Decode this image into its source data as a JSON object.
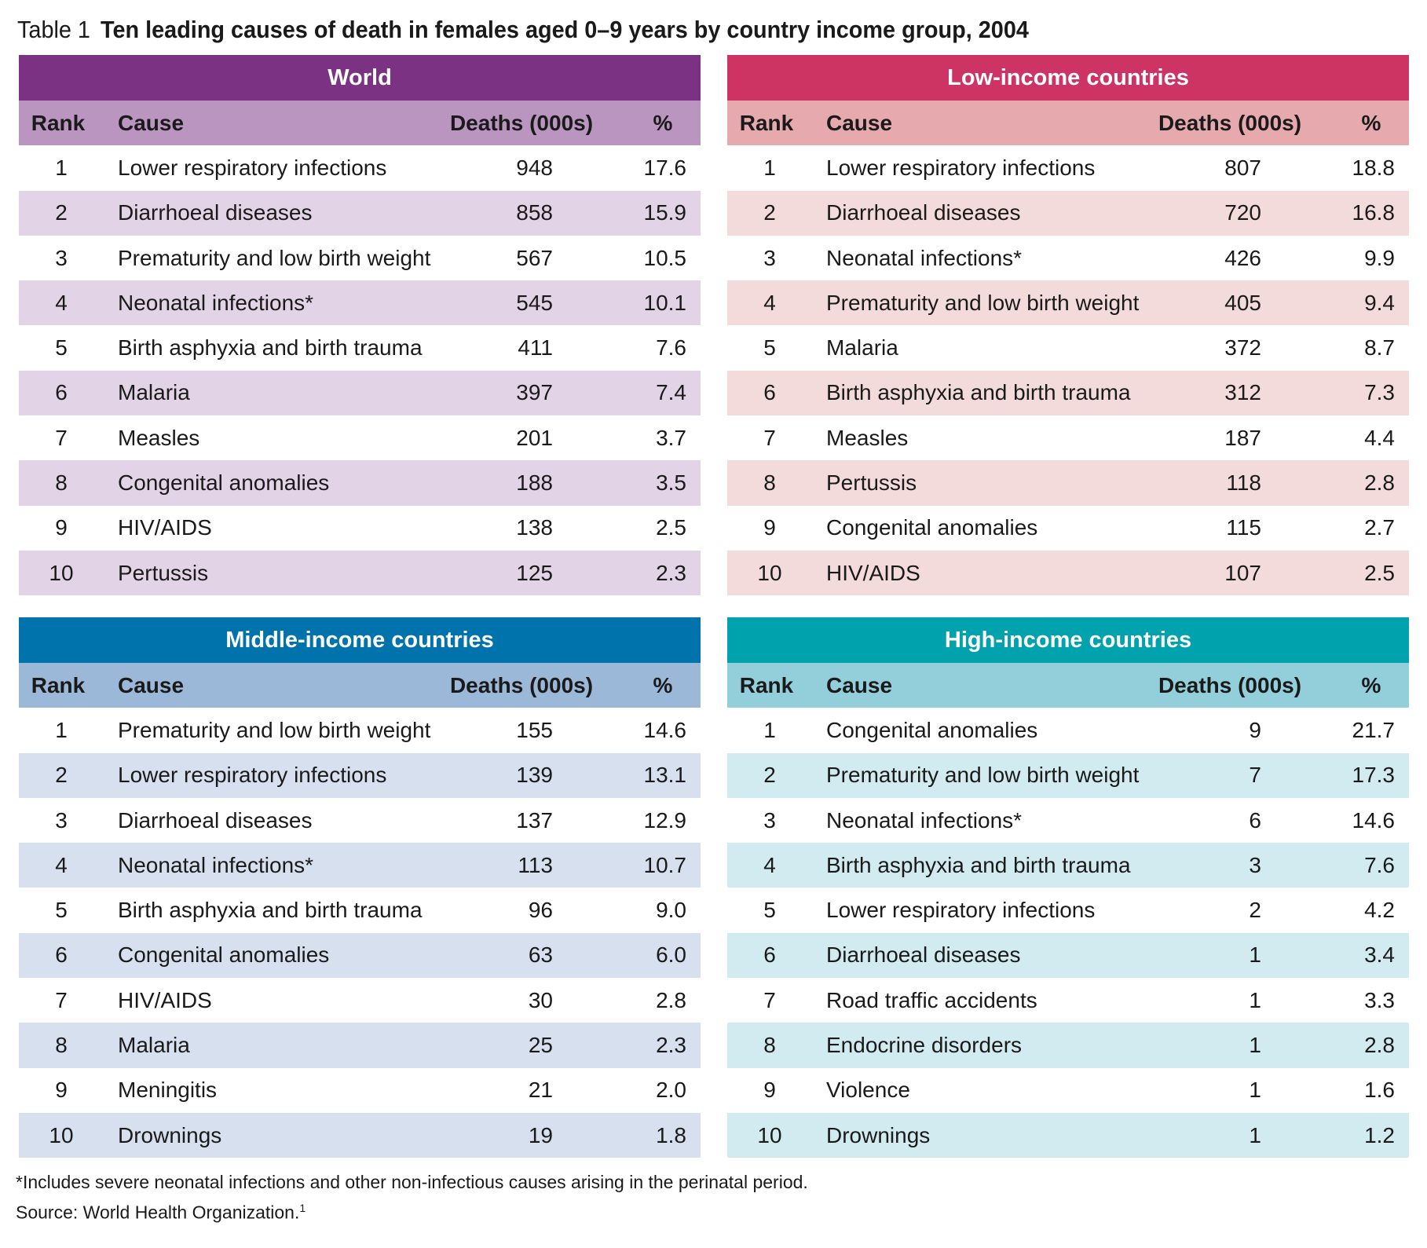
{
  "title": {
    "label": "Table 1",
    "text": "Ten leading causes of death in females aged 0–9 years by country income group, 2004"
  },
  "columns": {
    "rank": "Rank",
    "cause": "Cause",
    "deaths": "Deaths (000s)",
    "pct": "%"
  },
  "panels": [
    {
      "key": "world",
      "heading": "World",
      "colors": {
        "header": "#7b3282",
        "subheader": "#b995c0",
        "stripe": "#e2d3e6"
      },
      "rows": [
        {
          "rank": "1",
          "cause": "Lower respiratory infections",
          "deaths": "948",
          "pct": "17.6"
        },
        {
          "rank": "2",
          "cause": "Diarrhoeal diseases",
          "deaths": "858",
          "pct": "15.9"
        },
        {
          "rank": "3",
          "cause": "Prematurity and low birth weight",
          "deaths": "567",
          "pct": "10.5"
        },
        {
          "rank": "4",
          "cause": "Neonatal infections*",
          "deaths": "545",
          "pct": "10.1"
        },
        {
          "rank": "5",
          "cause": "Birth asphyxia and birth trauma",
          "deaths": "411",
          "pct": "7.6"
        },
        {
          "rank": "6",
          "cause": "Malaria",
          "deaths": "397",
          "pct": "7.4"
        },
        {
          "rank": "7",
          "cause": "Measles",
          "deaths": "201",
          "pct": "3.7"
        },
        {
          "rank": "8",
          "cause": "Congenital anomalies",
          "deaths": "188",
          "pct": "3.5"
        },
        {
          "rank": "9",
          "cause": "HIV/AIDS",
          "deaths": "138",
          "pct": "2.5"
        },
        {
          "rank": "10",
          "cause": "Pertussis",
          "deaths": "125",
          "pct": "2.3"
        }
      ]
    },
    {
      "key": "low",
      "heading": "Low-income countries",
      "colors": {
        "header": "#cd3463",
        "subheader": "#e6a9ae",
        "stripe": "#f3dbdc"
      },
      "rows": [
        {
          "rank": "1",
          "cause": "Lower respiratory infections",
          "deaths": "807",
          "pct": "18.8"
        },
        {
          "rank": "2",
          "cause": "Diarrhoeal diseases",
          "deaths": "720",
          "pct": "16.8"
        },
        {
          "rank": "3",
          "cause": "Neonatal infections*",
          "deaths": "426",
          "pct": "9.9"
        },
        {
          "rank": "4",
          "cause": "Prematurity and low birth weight",
          "deaths": "405",
          "pct": "9.4"
        },
        {
          "rank": "5",
          "cause": "Malaria",
          "deaths": "372",
          "pct": "8.7"
        },
        {
          "rank": "6",
          "cause": "Birth asphyxia and birth trauma",
          "deaths": "312",
          "pct": "7.3"
        },
        {
          "rank": "7",
          "cause": "Measles",
          "deaths": "187",
          "pct": "4.4"
        },
        {
          "rank": "8",
          "cause": "Pertussis",
          "deaths": "118",
          "pct": "2.8"
        },
        {
          "rank": "9",
          "cause": "Congenital anomalies",
          "deaths": "115",
          "pct": "2.7"
        },
        {
          "rank": "10",
          "cause": "HIV/AIDS",
          "deaths": "107",
          "pct": "2.5"
        }
      ]
    },
    {
      "key": "mid",
      "heading": "Middle-income countries",
      "colors": {
        "header": "#0073ad",
        "subheader": "#9cb8d8",
        "stripe": "#d6e0ee"
      },
      "rows": [
        {
          "rank": "1",
          "cause": "Prematurity and low birth weight",
          "deaths": "155",
          "pct": "14.6"
        },
        {
          "rank": "2",
          "cause": "Lower respiratory infections",
          "deaths": "139",
          "pct": "13.1"
        },
        {
          "rank": "3",
          "cause": "Diarrhoeal diseases",
          "deaths": "137",
          "pct": "12.9"
        },
        {
          "rank": "4",
          "cause": "Neonatal infections*",
          "deaths": "113",
          "pct": "10.7"
        },
        {
          "rank": "5",
          "cause": "Birth asphyxia and birth trauma",
          "deaths": "96",
          "pct": "9.0"
        },
        {
          "rank": "6",
          "cause": "Congenital anomalies",
          "deaths": "63",
          "pct": "6.0"
        },
        {
          "rank": "7",
          "cause": "HIV/AIDS",
          "deaths": "30",
          "pct": "2.8"
        },
        {
          "rank": "8",
          "cause": "Malaria",
          "deaths": "25",
          "pct": "2.3"
        },
        {
          "rank": "9",
          "cause": "Meningitis",
          "deaths": "21",
          "pct": "2.0"
        },
        {
          "rank": "10",
          "cause": "Drownings",
          "deaths": "19",
          "pct": "1.8"
        }
      ]
    },
    {
      "key": "high",
      "heading": "High-income countries",
      "colors": {
        "header": "#00a2ae",
        "subheader": "#92cfda",
        "stripe": "#d1ebf0"
      },
      "rows": [
        {
          "rank": "1",
          "cause": "Congenital anomalies",
          "deaths": "9",
          "pct": "21.7"
        },
        {
          "rank": "2",
          "cause": "Prematurity and low birth weight",
          "deaths": "7",
          "pct": "17.3"
        },
        {
          "rank": "3",
          "cause": "Neonatal infections*",
          "deaths": "6",
          "pct": "14.6"
        },
        {
          "rank": "4",
          "cause": "Birth asphyxia and birth trauma",
          "deaths": "3",
          "pct": "7.6"
        },
        {
          "rank": "5",
          "cause": "Lower respiratory infections",
          "deaths": "2",
          "pct": "4.2"
        },
        {
          "rank": "6",
          "cause": "Diarrhoeal diseases",
          "deaths": "1",
          "pct": "3.4"
        },
        {
          "rank": "7",
          "cause": "Road traffic accidents",
          "deaths": "1",
          "pct": "3.3"
        },
        {
          "rank": "8",
          "cause": "Endocrine disorders",
          "deaths": "1",
          "pct": "2.8"
        },
        {
          "rank": "9",
          "cause": "Violence",
          "deaths": "1",
          "pct": "1.6"
        },
        {
          "rank": "10",
          "cause": "Drownings",
          "deaths": "1",
          "pct": "1.2"
        }
      ]
    }
  ],
  "footnote": "*Includes severe neonatal infections and other non-infectious causes arising in the perinatal period.",
  "source": "Source: World Health Organization.",
  "source_ref": "1"
}
